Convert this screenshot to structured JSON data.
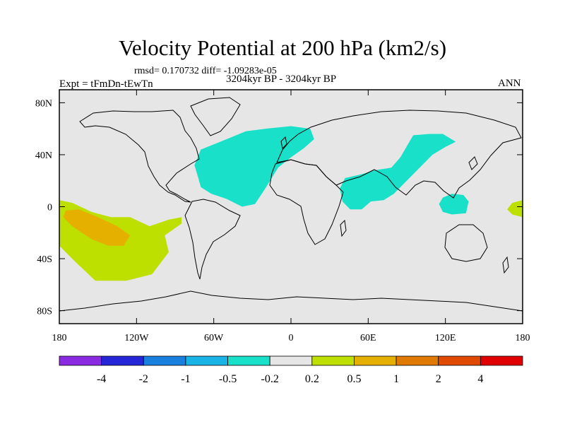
{
  "header": {
    "title": "Velocity Potential at 200 hPa (km2/s)",
    "stats": "rmsd= 0.170732 diff= -1.09283e-05",
    "experiment": "Expt = tFmDn-tEwTn",
    "period": "3204kyr BP - 3204kyr BP",
    "season": "ANN"
  },
  "chart_data": {
    "type": "heatmap",
    "title": "Velocity Potential at 200 hPa (km2/s)",
    "xlabel": "",
    "ylabel": "",
    "xlim": [
      -180,
      180
    ],
    "ylim": [
      -90,
      90
    ],
    "x_ticks": [
      {
        "value": -180,
        "label": "180"
      },
      {
        "value": -120,
        "label": "120W"
      },
      {
        "value": -60,
        "label": "60W"
      },
      {
        "value": 0,
        "label": "0"
      },
      {
        "value": 60,
        "label": "60E"
      },
      {
        "value": 120,
        "label": "120E"
      },
      {
        "value": 180,
        "label": "180"
      }
    ],
    "y_ticks": [
      {
        "value": 80,
        "label": "80N"
      },
      {
        "value": 40,
        "label": "40N"
      },
      {
        "value": 0,
        "label": "0"
      },
      {
        "value": -40,
        "label": "40S"
      },
      {
        "value": -80,
        "label": "80S"
      }
    ],
    "colorbar": {
      "colors": [
        "#8a2be2",
        "#2626d9",
        "#1a80e0",
        "#1ab3e6",
        "#19e0c8",
        "#e6e6e6",
        "#bde000",
        "#e6b000",
        "#e07a00",
        "#e04a00",
        "#e00000"
      ],
      "labels": [
        "-4",
        "-2",
        "-1",
        "-0.5",
        "-0.2",
        "0.2",
        "0.5",
        "1",
        "2",
        "4"
      ]
    },
    "regions": [
      {
        "name": "north-atlantic-negative",
        "color": "#19e0c8",
        "range": "-0.5 to -0.2",
        "points": [
          [
            -72,
            22
          ],
          [
            -75,
            32
          ],
          [
            -70,
            44
          ],
          [
            -55,
            50
          ],
          [
            -35,
            58
          ],
          [
            -20,
            60
          ],
          [
            0,
            62
          ],
          [
            15,
            60
          ],
          [
            18,
            52
          ],
          [
            10,
            45
          ],
          [
            0,
            38
          ],
          [
            -10,
            30
          ],
          [
            -20,
            14
          ],
          [
            -28,
            2
          ],
          [
            -38,
            0
          ],
          [
            -50,
            6
          ],
          [
            -62,
            10
          ],
          [
            -70,
            15
          ]
        ]
      },
      {
        "name": "indian-ocean-negative",
        "color": "#19e0c8",
        "range": "-0.5 to -0.2",
        "points": [
          [
            42,
            22
          ],
          [
            55,
            25
          ],
          [
            65,
            28
          ],
          [
            78,
            30
          ],
          [
            85,
            38
          ],
          [
            95,
            55
          ],
          [
            108,
            56
          ],
          [
            118,
            56
          ],
          [
            128,
            50
          ],
          [
            120,
            46
          ],
          [
            110,
            40
          ],
          [
            100,
            30
          ],
          [
            92,
            22
          ],
          [
            80,
            10
          ],
          [
            72,
            5
          ],
          [
            62,
            4
          ],
          [
            55,
            -2
          ],
          [
            46,
            -2
          ],
          [
            40,
            4
          ],
          [
            38,
            14
          ]
        ]
      },
      {
        "name": "maritime-continent-negative",
        "color": "#19e0c8",
        "range": "-0.5 to -0.2",
        "points": [
          [
            118,
            7
          ],
          [
            125,
            10
          ],
          [
            134,
            9
          ],
          [
            138,
            4
          ],
          [
            136,
            -5
          ],
          [
            125,
            -6
          ],
          [
            118,
            -4
          ],
          [
            115,
            2
          ]
        ]
      },
      {
        "name": "east-pacific-positive",
        "color": "#bde000",
        "range": "0.2 to 0.5",
        "points": [
          [
            -180,
            5
          ],
          [
            -170,
            3
          ],
          [
            -155,
            -4
          ],
          [
            -140,
            -8
          ],
          [
            -125,
            -8
          ],
          [
            -110,
            -15
          ],
          [
            -95,
            -10
          ],
          [
            -85,
            -8
          ],
          [
            -85,
            -13
          ],
          [
            -98,
            -22
          ],
          [
            -95,
            -35
          ],
          [
            -108,
            -52
          ],
          [
            -128,
            -57
          ],
          [
            -152,
            -57
          ],
          [
            -168,
            -42
          ],
          [
            -180,
            -30
          ]
        ]
      },
      {
        "name": "east-pacific-core-positive",
        "color": "#e6b000",
        "range": "0.5 to 1",
        "points": [
          [
            -175,
            -3
          ],
          [
            -165,
            -2
          ],
          [
            -150,
            -8
          ],
          [
            -135,
            -15
          ],
          [
            -125,
            -22
          ],
          [
            -130,
            -30
          ],
          [
            -142,
            -30
          ],
          [
            -155,
            -25
          ],
          [
            -170,
            -15
          ],
          [
            -177,
            -8
          ]
        ]
      },
      {
        "name": "dateline-east-positive",
        "color": "#bde000",
        "range": "0.2 to 0.5",
        "points": [
          [
            180,
            5
          ],
          [
            172,
            3
          ],
          [
            168,
            -2
          ],
          [
            172,
            -6
          ],
          [
            180,
            -8
          ]
        ]
      }
    ]
  }
}
